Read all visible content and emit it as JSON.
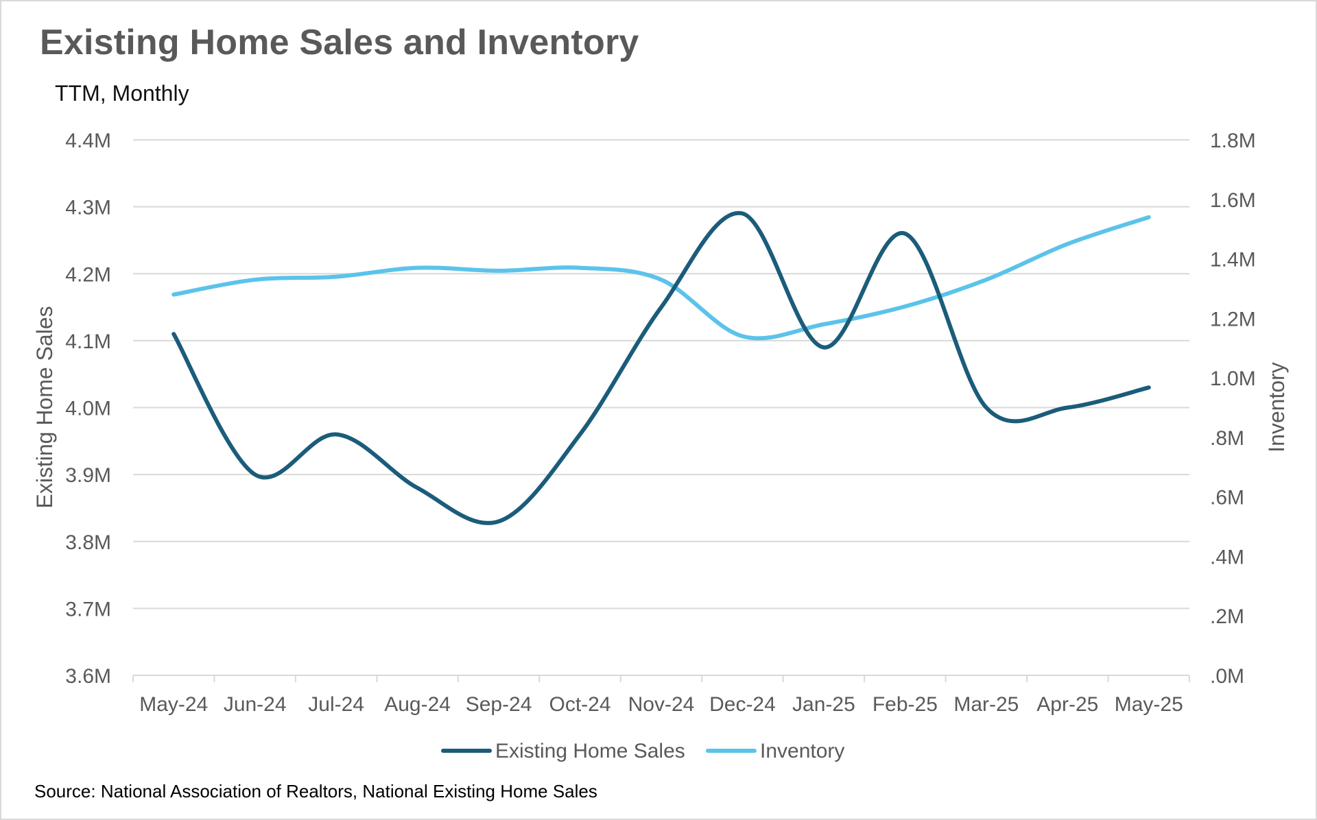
{
  "chart_data": {
    "type": "line",
    "title": "Existing Home Sales and Inventory",
    "subtitle": "TTM, Monthly",
    "source": "Source: National Association of Realtors, National Existing Home Sales",
    "categories": [
      "May-24",
      "Jun-24",
      "Jul-24",
      "Aug-24",
      "Sep-24",
      "Oct-24",
      "Nov-24",
      "Dec-24",
      "Jan-25",
      "Feb-25",
      "Mar-25",
      "Apr-25",
      "May-25"
    ],
    "left_axis": {
      "label": "Existing Home Sales",
      "min": 3600000,
      "max": 4400000,
      "ticks": [
        4400000,
        4300000,
        4200000,
        4100000,
        4000000,
        3900000,
        3800000,
        3700000,
        3600000
      ],
      "tick_labels": [
        "4.4M",
        "4.3M",
        "4.2M",
        "4.1M",
        "4.0M",
        "3.9M",
        "3.8M",
        "3.7M",
        "3.6M"
      ]
    },
    "right_axis": {
      "label": "Inventory",
      "min": 0,
      "max": 1800000,
      "ticks": [
        1800000,
        1600000,
        1400000,
        1200000,
        1000000,
        800000,
        600000,
        400000,
        200000,
        0
      ],
      "tick_labels": [
        "1.8M",
        "1.6M",
        "1.4M",
        "1.2M",
        "1.0M",
        ".8M",
        ".6M",
        ".4M",
        ".2M",
        ".0M"
      ]
    },
    "series": [
      {
        "name": "Existing Home Sales",
        "axis": "left",
        "color": "#1b5c7a",
        "values": [
          4110000,
          3900000,
          3960000,
          3880000,
          3830000,
          3960000,
          4150000,
          4290000,
          4090000,
          4260000,
          4000000,
          4000000,
          4030000
        ]
      },
      {
        "name": "Inventory",
        "axis": "right",
        "color": "#5bc3ea",
        "values": [
          1280000,
          1330000,
          1340000,
          1370000,
          1360000,
          1370000,
          1330000,
          1140000,
          1180000,
          1240000,
          1330000,
          1450000,
          1540000
        ]
      }
    ],
    "grid": true,
    "legend_position": "bottom"
  },
  "colors": {
    "title": "#595959",
    "grid": "#d9d9d9",
    "axis_text": "#595959"
  }
}
